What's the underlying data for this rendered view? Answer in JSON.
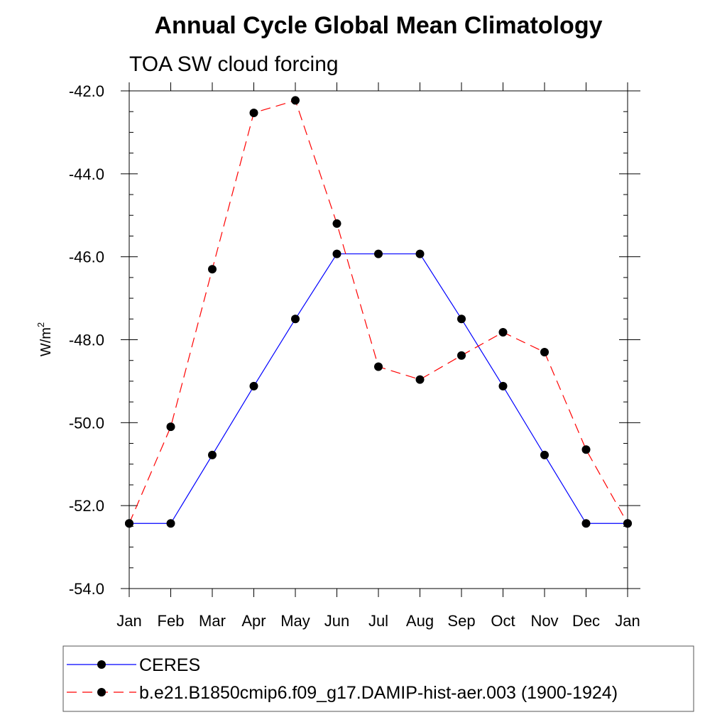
{
  "chart_data": {
    "type": "line",
    "title": "Annual Cycle Global Mean Climatology",
    "subtitle": "TOA SW cloud forcing",
    "ylabel_base": "W/m",
    "ylabel_sup": "2",
    "xlabel": "",
    "categories": [
      "Jan",
      "Feb",
      "Mar",
      "Apr",
      "May",
      "Jun",
      "Jul",
      "Aug",
      "Sep",
      "Oct",
      "Nov",
      "Dec",
      "Jan"
    ],
    "ylim": [
      -54.0,
      -42.0
    ],
    "yticks": [
      "-42.0",
      "-44.0",
      "-46.0",
      "-48.0",
      "-50.0",
      "-52.0",
      "-54.0"
    ],
    "ytick_values": [
      -42,
      -44,
      -46,
      -48,
      -50,
      -52,
      -54
    ],
    "series": [
      {
        "name": "CERES",
        "color": "#0000ff",
        "dash": "solid",
        "values": [
          -52.43,
          -52.43,
          -50.78,
          -49.12,
          -47.5,
          -45.93,
          -45.93,
          -45.93,
          -47.5,
          -49.12,
          -50.78,
          -52.43,
          -52.43
        ]
      },
      {
        "name": "b.e21.B1850cmip6.f09_g17.DAMIP-hist-aer.003 (1900-1924)",
        "color": "#ff0000",
        "dash": "dashed",
        "values": [
          -52.43,
          -50.1,
          -46.3,
          -42.53,
          -42.23,
          -45.2,
          -48.65,
          -48.96,
          -48.38,
          -47.82,
          -48.3,
          -50.65,
          -52.43
        ]
      }
    ],
    "grid": false,
    "legend_position": "bottom"
  }
}
